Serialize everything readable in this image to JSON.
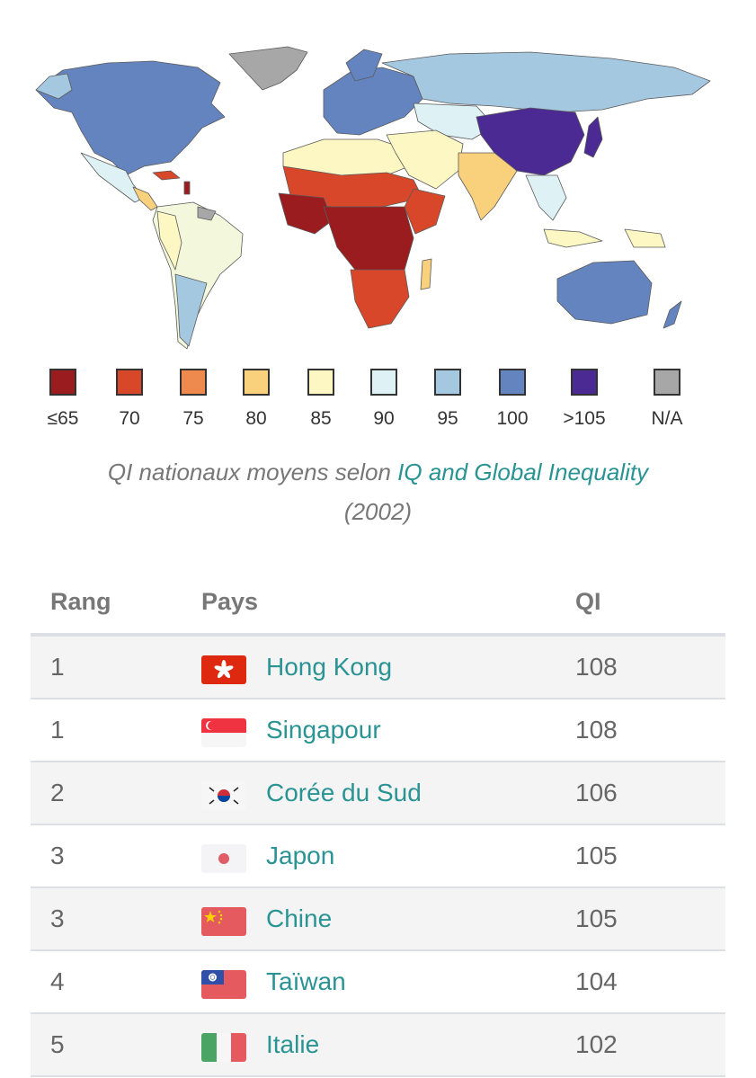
{
  "legend": [
    {
      "label": "≤65",
      "color": "#9b1c1f"
    },
    {
      "label": "70",
      "color": "#d9472b"
    },
    {
      "label": "75",
      "color": "#ef8a4f"
    },
    {
      "label": "80",
      "color": "#f9d17d"
    },
    {
      "label": "85",
      "color": "#fdf8c3"
    },
    {
      "label": "90",
      "color": "#def1f4"
    },
    {
      "label": "95",
      "color": "#a5c8e1"
    },
    {
      "label": "100",
      "color": "#6484c0"
    },
    {
      "label": ">105",
      "color": "#4b2a93"
    },
    {
      "label": "N/A",
      "color": "#a7a7a7"
    }
  ],
  "caption": {
    "prefix": "QI nationaux moyens selon ",
    "link": "IQ and Global Inequality",
    "suffix": "(2002)"
  },
  "table": {
    "headers": {
      "rank": "Rang",
      "country": "Pays",
      "qi": "QI"
    },
    "rows": [
      {
        "rank": "1",
        "country": "Hong Kong",
        "qi": "108",
        "flag": "hong-kong-flag"
      },
      {
        "rank": "1",
        "country": "Singapour",
        "qi": "108",
        "flag": "singapore-flag"
      },
      {
        "rank": "2",
        "country": "Corée du Sud",
        "qi": "106",
        "flag": "south-korea-flag"
      },
      {
        "rank": "3",
        "country": "Japon",
        "qi": "105",
        "flag": "japan-flag"
      },
      {
        "rank": "3",
        "country": "Chine",
        "qi": "105",
        "flag": "china-flag"
      },
      {
        "rank": "4",
        "country": "Taïwan",
        "qi": "104",
        "flag": "taiwan-flag"
      },
      {
        "rank": "5",
        "country": "Italie",
        "qi": "102",
        "flag": "italy-flag"
      }
    ]
  }
}
